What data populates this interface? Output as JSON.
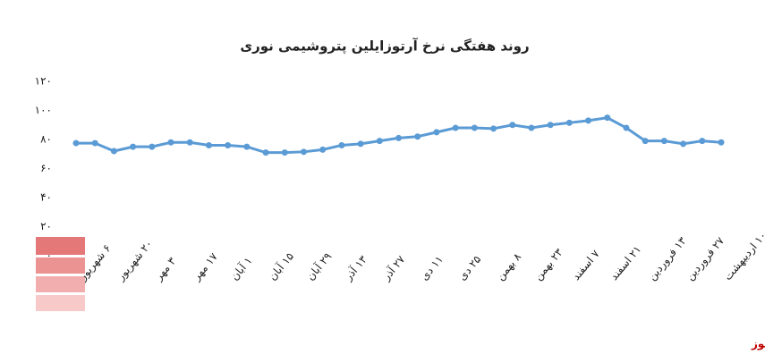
{
  "chart_data": {
    "type": "line",
    "title": "روند هفتگی نرخ آرتوزایلین پتروشیمی نوری",
    "source": "بورس نیوز",
    "categories": [
      "۶ شهریور",
      null,
      "۲۰ شهریور",
      null,
      "۳ مهر",
      null,
      "۱۷ مهر",
      null,
      "۱ آبان",
      null,
      "۱۵ آبان",
      null,
      "۲۹ آبان",
      null,
      "۱۳ آذر",
      null,
      "۲۷ آذر",
      null,
      "۱۱ دی",
      null,
      "۲۵ دی",
      null,
      "۸ بهمن",
      null,
      "۲۳ بهمن",
      null,
      "۷ اسفند",
      null,
      "۲۱ اسفند",
      null,
      "۱۳ فروردین",
      null,
      "۲۷ فروردین",
      null,
      "۱۰ اردیبهشت"
    ],
    "series": [
      {
        "color": "#5b9bd5",
        "values": [
          77.5,
          77.5,
          72,
          75,
          75,
          78,
          78,
          76,
          76,
          75,
          71,
          71,
          71.5,
          73,
          76,
          77,
          79,
          81,
          82,
          85,
          88,
          88,
          87.5,
          90,
          88,
          90,
          91.5,
          93,
          95,
          88,
          79,
          79,
          77,
          79,
          78
        ]
      }
    ],
    "ylim": [
      0,
      120
    ],
    "yticks": [
      {
        "value": 0,
        "label": "۰"
      },
      {
        "value": 20,
        "label": "۲۰"
      },
      {
        "value": 40,
        "label": "۴۰"
      },
      {
        "value": 60,
        "label": "۶۰"
      },
      {
        "value": 80,
        "label": "۸۰"
      },
      {
        "value": 100,
        "label": "۱۰۰"
      },
      {
        "value": 120,
        "label": "۱۲۰"
      }
    ]
  }
}
